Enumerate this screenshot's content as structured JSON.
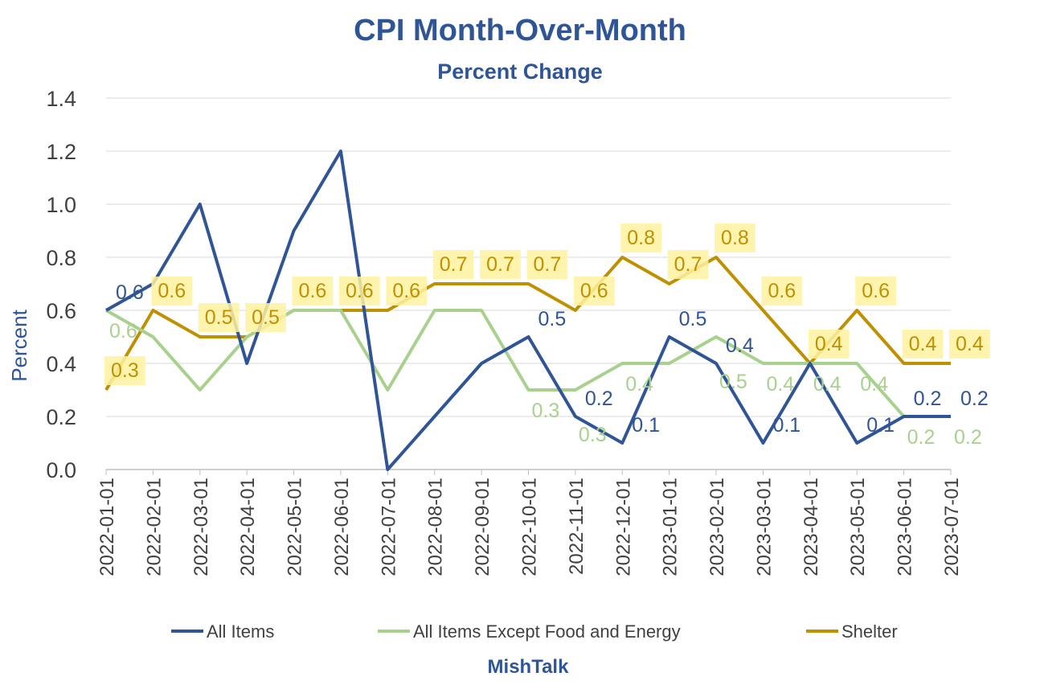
{
  "chart_data": {
    "type": "line",
    "title": "CPI Month-Over-Month",
    "subtitle": "Percent Change",
    "xlabel": "",
    "ylabel": "Percent",
    "footer": "MishTalk",
    "ylim": [
      0,
      1.4
    ],
    "yticks": [
      "0.0",
      "0.2",
      "0.4",
      "0.6",
      "0.8",
      "1.0",
      "1.2",
      "1.4"
    ],
    "grid": true,
    "legend_position": "bottom",
    "categories": [
      "2022-01-01",
      "2022-02-01",
      "2022-03-01",
      "2022-04-01",
      "2022-05-01",
      "2022-06-01",
      "2022-07-01",
      "2022-08-01",
      "2022-09-01",
      "2022-10-01",
      "2022-11-01",
      "2022-12-01",
      "2023-01-01",
      "2023-02-01",
      "2023-03-01",
      "2023-04-01",
      "2023-05-01",
      "2023-06-01",
      "2023-07-01"
    ],
    "series": [
      {
        "name": "All Items",
        "color": "#2F5597",
        "values": [
          0.6,
          0.7,
          1.0,
          0.4,
          0.9,
          1.2,
          0.0,
          0.2,
          0.4,
          0.5,
          0.2,
          0.1,
          0.5,
          0.4,
          0.1,
          0.4,
          0.1,
          0.2,
          0.2
        ],
        "labels": [
          "0.6",
          null,
          null,
          null,
          null,
          null,
          null,
          null,
          null,
          "0.5",
          "0.2",
          "0.1",
          "0.5",
          "0.4",
          "0.1",
          null,
          "0.1",
          "0.2",
          "0.2"
        ]
      },
      {
        "name": "All Items Except Food and Energy",
        "color": "#A9D18E",
        "values": [
          0.6,
          0.5,
          0.3,
          0.5,
          0.6,
          0.6,
          0.3,
          0.6,
          0.6,
          0.3,
          0.3,
          0.4,
          0.4,
          0.5,
          0.4,
          0.4,
          0.4,
          0.2,
          0.2
        ],
        "labels": [
          "0.6",
          null,
          null,
          null,
          null,
          null,
          null,
          null,
          null,
          "0.3",
          "0.3",
          "0.4",
          null,
          "0.5",
          "0.4",
          "0.4",
          "0.4",
          "0.2",
          "0.2"
        ]
      },
      {
        "name": "Shelter",
        "color": "#BF9000",
        "values": [
          0.3,
          0.6,
          0.5,
          0.5,
          0.6,
          0.6,
          0.6,
          0.7,
          0.7,
          0.7,
          0.6,
          0.8,
          0.7,
          0.8,
          0.6,
          0.4,
          0.6,
          0.4,
          0.4
        ],
        "labels": [
          "0.3",
          "0.6",
          "0.5",
          "0.5",
          "0.6",
          "0.6",
          "0.6",
          "0.7",
          "0.7",
          "0.7",
          "0.6",
          "0.8",
          "0.7",
          "0.8",
          "0.6",
          "0.4",
          "0.6",
          "0.4",
          "0.4"
        ]
      }
    ]
  }
}
